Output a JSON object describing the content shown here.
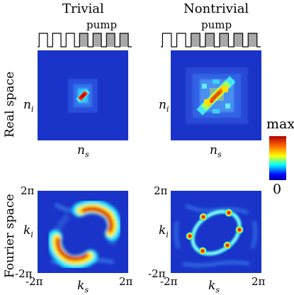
{
  "columns": [
    {
      "title": "Trivial",
      "pump_label": "pump",
      "pump_pattern": [
        0,
        0,
        0,
        1,
        1,
        1,
        1
      ]
    },
    {
      "title": "Nontrivial",
      "pump_label": "pump",
      "pump_pattern": [
        0,
        0,
        1,
        1,
        1,
        1,
        1
      ]
    }
  ],
  "rows": {
    "real_space": "Real space",
    "fourier_space": "Fourier space"
  },
  "axes": {
    "real_y": "n",
    "real_y_sub": "i",
    "real_x": "n",
    "real_x_sub": "s",
    "fourier_y": "k",
    "fourier_y_sub": "i",
    "fourier_x": "k",
    "fourier_x_sub": "s",
    "tick_pos": "2π",
    "tick_neg": "-2π"
  },
  "colorbar": {
    "max_label": "max",
    "min_label": "0"
  },
  "colors": {
    "background_blue": "#1a33c8",
    "pump_filled": "#a8a8a8"
  }
}
